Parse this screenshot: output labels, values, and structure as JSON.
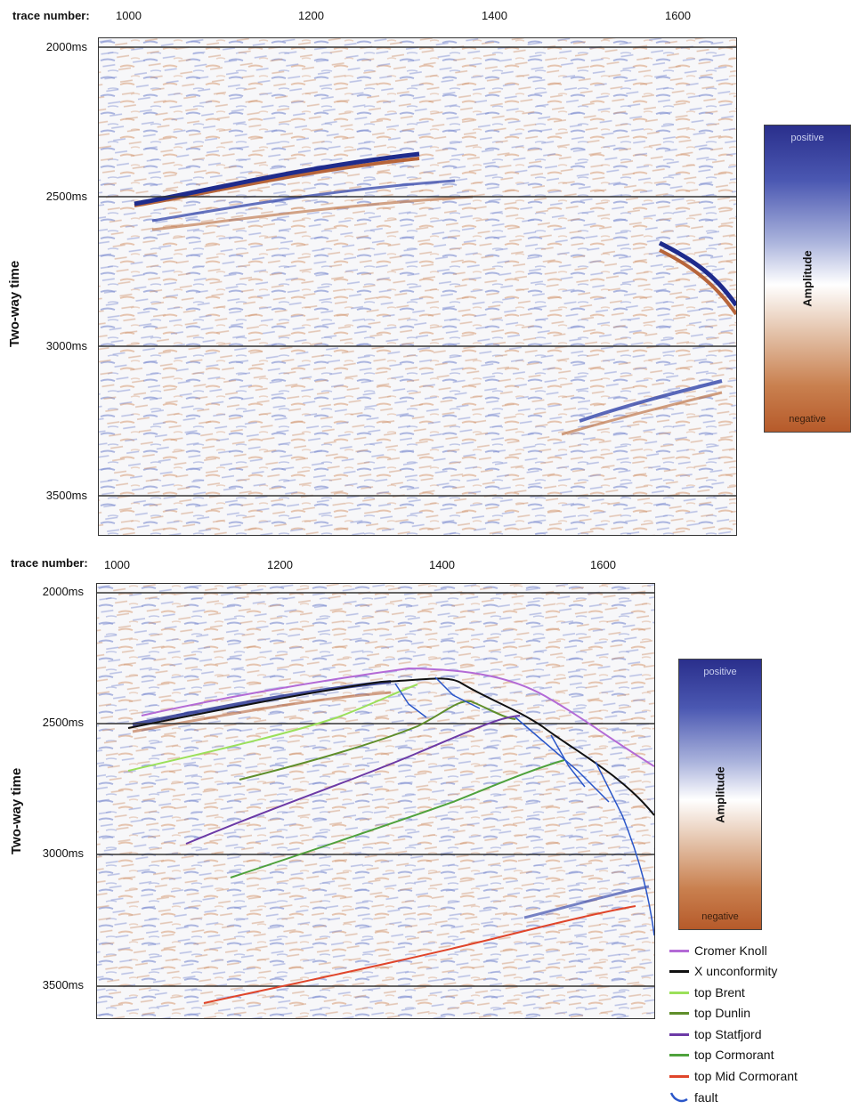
{
  "top_panel": {
    "trace_caption": "trace number:",
    "trace_ticks": [
      "1000",
      "1200",
      "1400",
      "1600"
    ],
    "time_ticks": [
      "2000ms",
      "2500ms",
      "3000ms",
      "3500ms"
    ],
    "y_title": "Two-way time",
    "colorbar": {
      "positive": "positive",
      "negative": "negative",
      "title": "Amplitude"
    }
  },
  "bottom_panel": {
    "trace_caption": "trace number:",
    "trace_ticks": [
      "1000",
      "1200",
      "1400",
      "1600"
    ],
    "time_ticks": [
      "2000ms",
      "2500ms",
      "3000ms",
      "3500ms"
    ],
    "y_title": "Two-way time",
    "colorbar": {
      "positive": "positive",
      "negative": "negative",
      "title": "Amplitude"
    }
  },
  "legend": [
    {
      "label": "Cromer Knoll",
      "color": "#b36ad6"
    },
    {
      "label": "X unconformity",
      "color": "#111111"
    },
    {
      "label": "top Brent",
      "color": "#9be05a"
    },
    {
      "label": "top Dunlin",
      "color": "#5f8e2a"
    },
    {
      "label": "top Statfjord",
      "color": "#6c3aa6"
    },
    {
      "label": "top Cormorant",
      "color": "#4fa23c"
    },
    {
      "label": "top Mid Cormorant",
      "color": "#e0452a"
    },
    {
      "label": "fault",
      "color": "#2a56c9"
    }
  ]
}
